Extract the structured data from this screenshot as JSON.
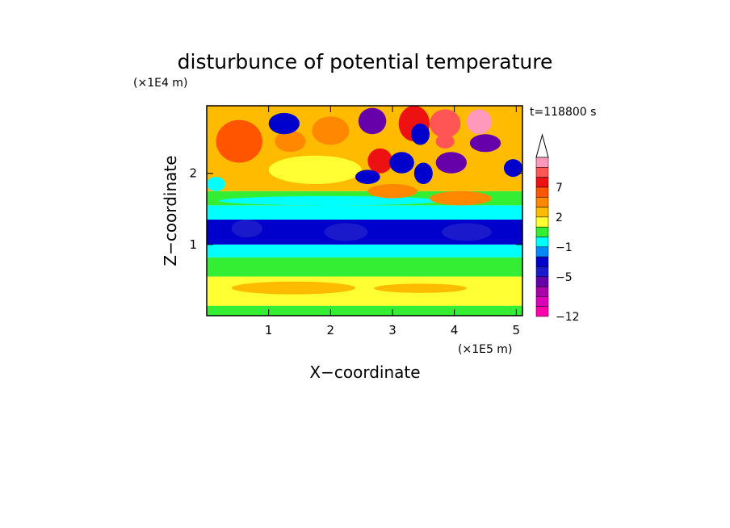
{
  "chart_data": {
    "type": "heatmap",
    "title": "disturbunce of potential temperature",
    "time_label": "t=118800 s",
    "xlabel": "X−coordinate",
    "ylabel": "Z−coordinate",
    "x_unit": "(×1E5 m)",
    "y_unit": "(×1E4 m)",
    "xlim": [
      0,
      5.1
    ],
    "ylim": [
      0,
      2.95
    ],
    "x_ticks": [
      {
        "v": 1,
        "label": "1"
      },
      {
        "v": 2,
        "label": "2"
      },
      {
        "v": 3,
        "label": "3"
      },
      {
        "v": 4,
        "label": "4"
      },
      {
        "v": 5,
        "label": "5"
      }
    ],
    "y_ticks": [
      {
        "v": 1,
        "label": "1"
      },
      {
        "v": 2,
        "label": "2"
      }
    ],
    "colorbar": {
      "extend_top": true,
      "levels": [
        {
          "label": "",
          "color": "#ff99bb"
        },
        {
          "label": "",
          "color": "#ff5555"
        },
        {
          "label": "7",
          "color": "#ee1111"
        },
        {
          "label": "",
          "color": "#ff5500"
        },
        {
          "label": "",
          "color": "#ff8800"
        },
        {
          "label": "2",
          "color": "#ffbb00"
        },
        {
          "label": "",
          "color": "#ffff33"
        },
        {
          "label": "",
          "color": "#33ee33"
        },
        {
          "label": "−1",
          "color": "#00ffff"
        },
        {
          "label": "",
          "color": "#0088ff"
        },
        {
          "label": "",
          "color": "#0000cc"
        },
        {
          "label": "−5",
          "color": "#1a1acc"
        },
        {
          "label": "",
          "color": "#6600aa"
        },
        {
          "label": "",
          "color": "#aa00aa"
        },
        {
          "label": "",
          "color": "#dd00bb"
        },
        {
          "label": "−12",
          "color": "#ff00aa"
        }
      ]
    },
    "regions": [
      {
        "x": [
          0,
          5.1
        ],
        "z": [
          0,
          0.14
        ],
        "level": 7
      },
      {
        "x": [
          0,
          5.1
        ],
        "z": [
          0.14,
          0.55
        ],
        "level": 6
      },
      {
        "x": [
          0,
          5.1
        ],
        "z": [
          0.55,
          0.82
        ],
        "level": 7
      },
      {
        "x": [
          0,
          5.1
        ],
        "z": [
          0.82,
          1.0
        ],
        "level": 8
      },
      {
        "x": [
          0,
          5.1
        ],
        "z": [
          1.0,
          1.35
        ],
        "level": 10
      },
      {
        "x": [
          0,
          5.1
        ],
        "z": [
          1.35,
          1.55
        ],
        "level": 8
      },
      {
        "x": [
          0,
          5.1
        ],
        "z": [
          1.55,
          1.75
        ],
        "level": 7
      },
      {
        "x": [
          0,
          5.1
        ],
        "z": [
          1.75,
          2.95
        ],
        "level": 5
      },
      {
        "x": [
          0.4,
          2.4
        ],
        "z": [
          0.3,
          0.48
        ],
        "level": 5
      },
      {
        "x": [
          2.7,
          4.2
        ],
        "z": [
          0.32,
          0.45
        ],
        "level": 5
      },
      {
        "x": [
          0.2,
          3.8
        ],
        "z": [
          1.55,
          1.68
        ],
        "level": 8
      },
      {
        "x": [
          2.6,
          3.4
        ],
        "z": [
          1.65,
          1.85
        ],
        "level": 4
      },
      {
        "x": [
          3.6,
          4.6
        ],
        "z": [
          1.55,
          1.75
        ],
        "level": 4
      },
      {
        "x": [
          1.0,
          2.5
        ],
        "z": [
          1.85,
          2.25
        ],
        "level": 6
      },
      {
        "x": [
          0.15,
          0.9
        ],
        "z": [
          2.15,
          2.75
        ],
        "level": 3
      },
      {
        "x": [
          1.1,
          1.6
        ],
        "z": [
          2.3,
          2.6
        ],
        "level": 4
      },
      {
        "x": [
          1.7,
          2.3
        ],
        "z": [
          2.4,
          2.8
        ],
        "level": 4
      },
      {
        "x": [
          3.1,
          3.6
        ],
        "z": [
          2.45,
          2.95
        ],
        "level": 2
      },
      {
        "x": [
          3.6,
          4.1
        ],
        "z": [
          2.5,
          2.9
        ],
        "level": 1
      },
      {
        "x": [
          4.2,
          4.6
        ],
        "z": [
          2.55,
          2.9
        ],
        "level": 0
      },
      {
        "x": [
          2.6,
          3.0
        ],
        "z": [
          2.0,
          2.35
        ],
        "level": 2
      },
      {
        "x": [
          3.7,
          4.0
        ],
        "z": [
          2.35,
          2.55
        ],
        "level": 1
      },
      {
        "x": [
          1.0,
          1.5
        ],
        "z": [
          2.55,
          2.85
        ],
        "level": 10
      },
      {
        "x": [
          2.45,
          2.9
        ],
        "z": [
          2.55,
          2.92
        ],
        "level": 12
      },
      {
        "x": [
          2.95,
          3.35
        ],
        "z": [
          2.0,
          2.3
        ],
        "level": 10
      },
      {
        "x": [
          3.35,
          3.65
        ],
        "z": [
          1.85,
          2.15
        ],
        "level": 10
      },
      {
        "x": [
          3.7,
          4.2
        ],
        "z": [
          2.0,
          2.3
        ],
        "level": 12
      },
      {
        "x": [
          4.25,
          4.75
        ],
        "z": [
          2.3,
          2.55
        ],
        "level": 12
      },
      {
        "x": [
          4.8,
          5.1
        ],
        "z": [
          1.95,
          2.2
        ],
        "level": 10
      },
      {
        "x": [
          2.4,
          2.8
        ],
        "z": [
          1.85,
          2.05
        ],
        "level": 10
      },
      {
        "x": [
          3.3,
          3.6
        ],
        "z": [
          2.4,
          2.7
        ],
        "level": 10
      },
      {
        "x": [
          0.4,
          0.9
        ],
        "z": [
          1.1,
          1.35
        ],
        "level": 11
      },
      {
        "x": [
          1.9,
          2.6
        ],
        "z": [
          1.05,
          1.3
        ],
        "level": 11
      },
      {
        "x": [
          3.8,
          4.6
        ],
        "z": [
          1.05,
          1.3
        ],
        "level": 11
      },
      {
        "x": [
          0,
          0.3
        ],
        "z": [
          1.75,
          1.95
        ],
        "level": 8
      }
    ]
  }
}
